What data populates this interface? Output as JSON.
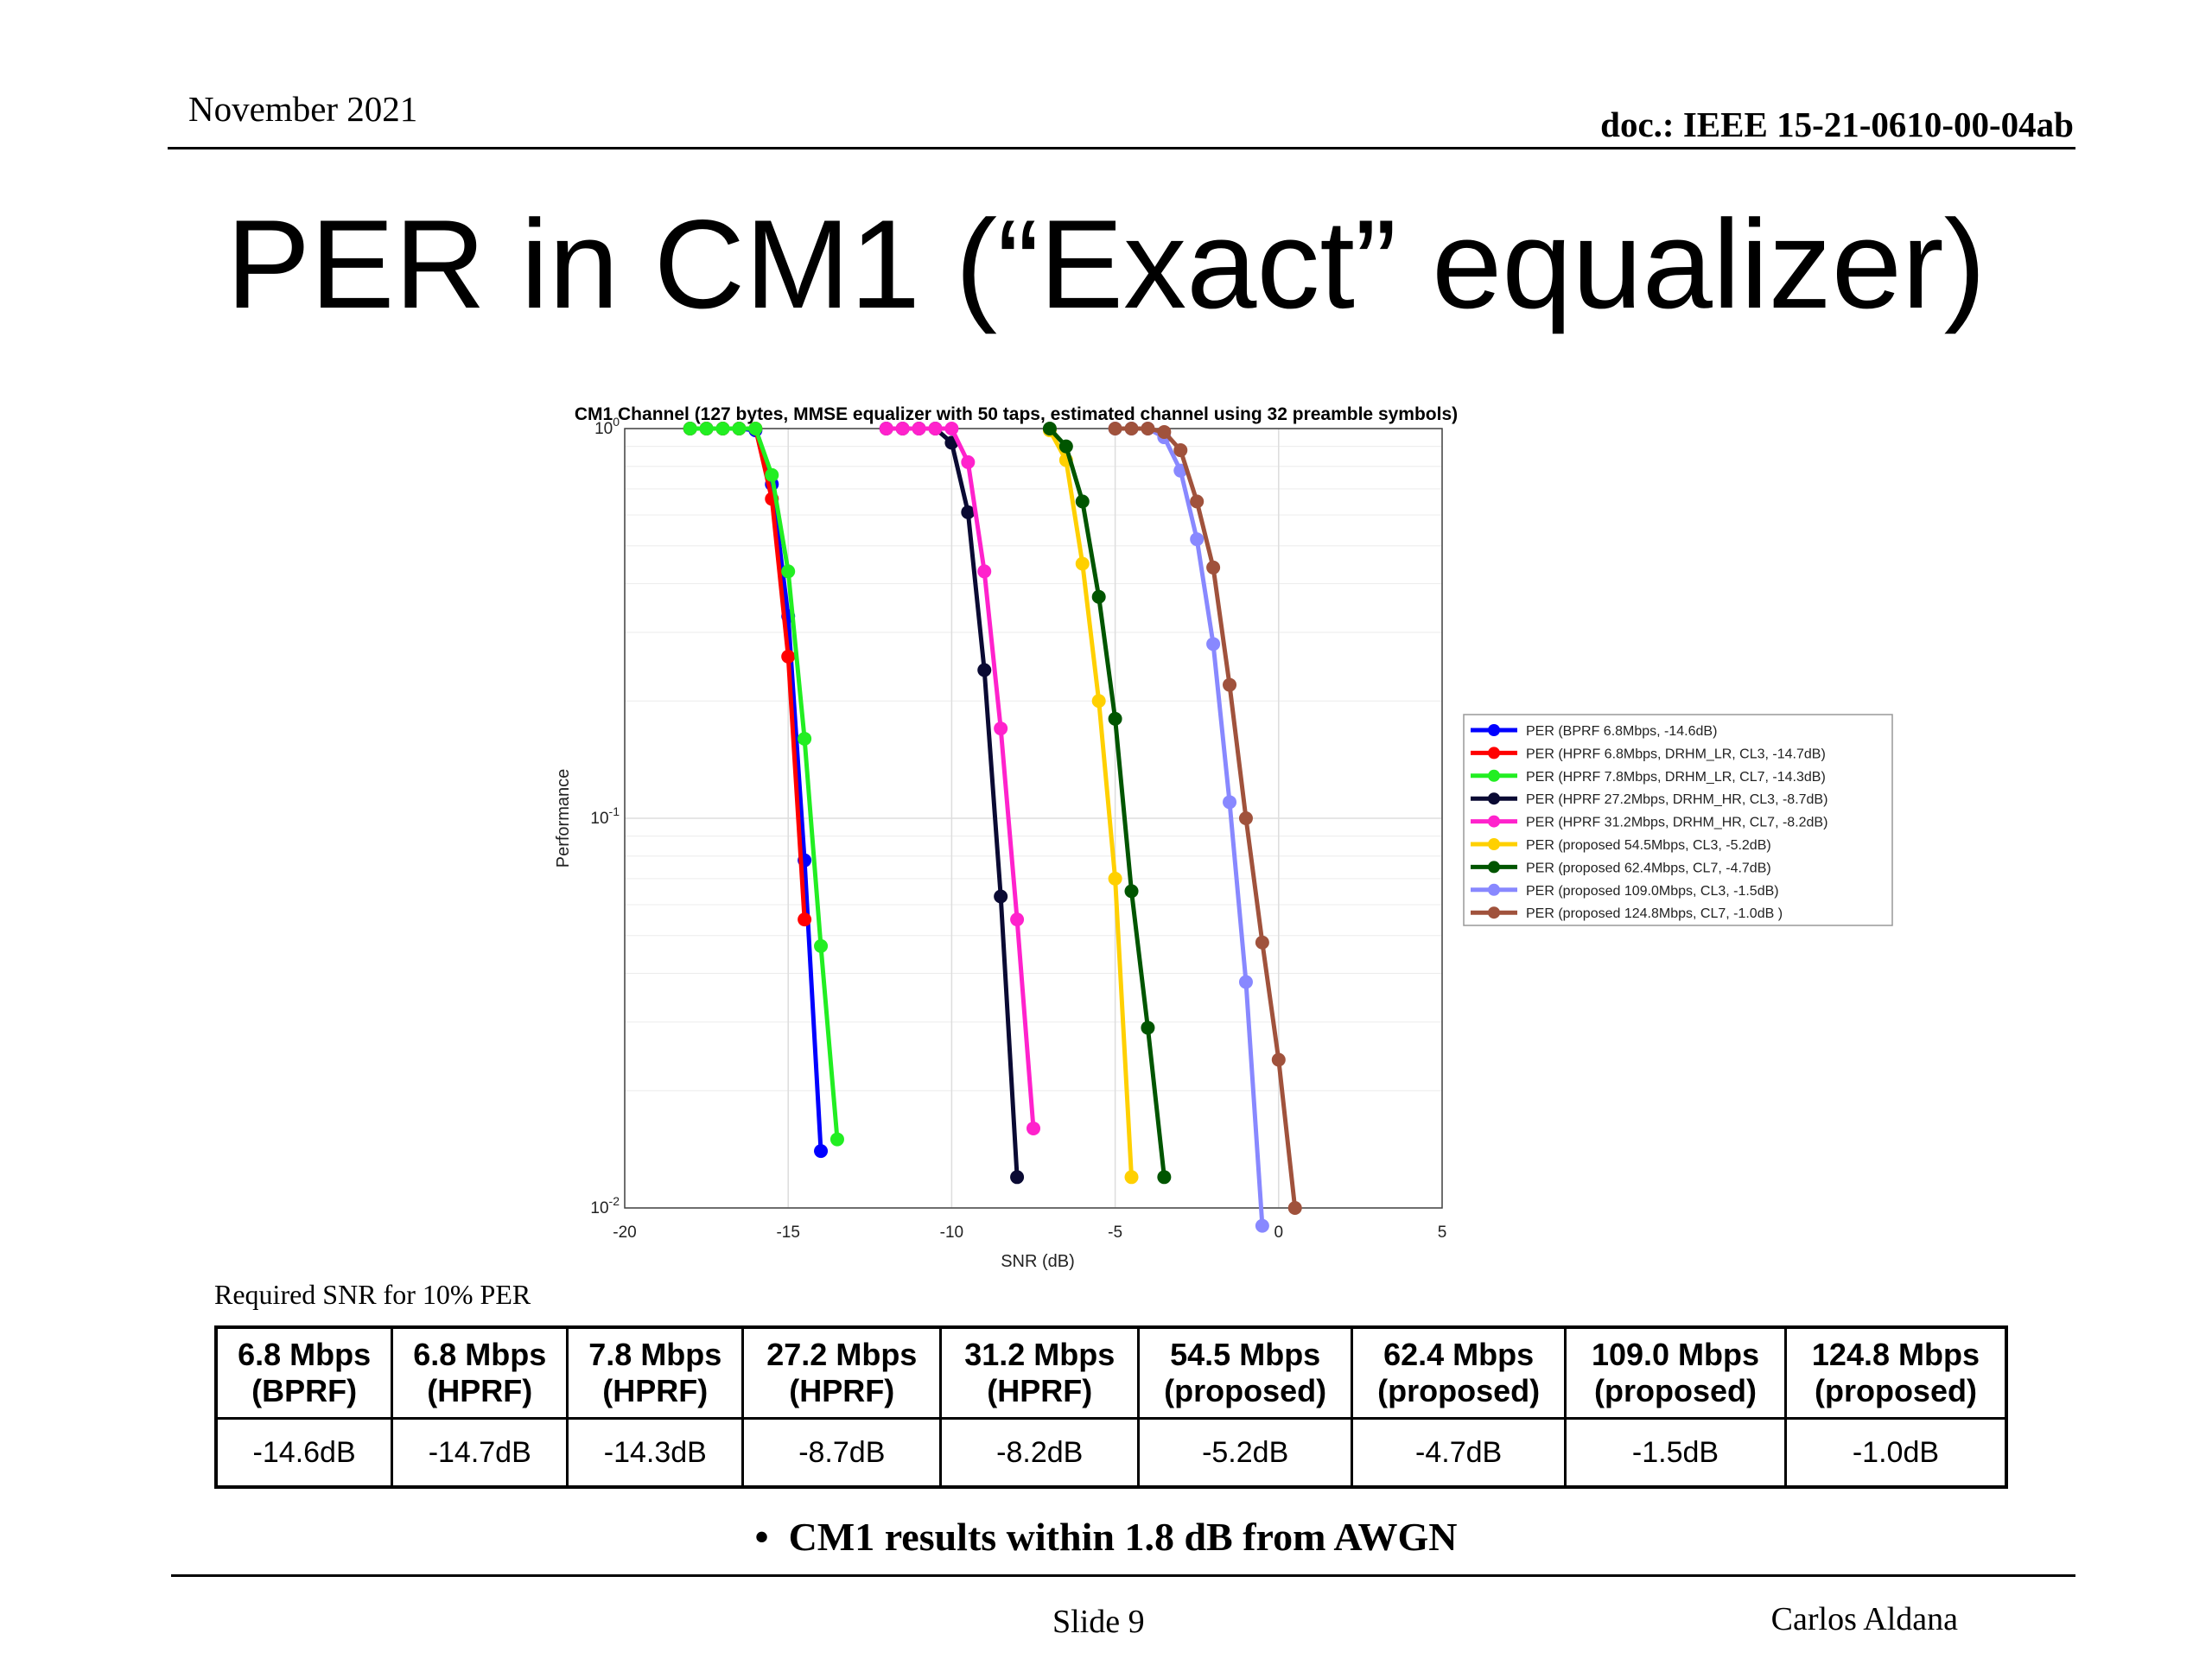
{
  "header": {
    "date": "November 2021",
    "doc": "doc.: IEEE 15-21-0610-00-04ab"
  },
  "slide_title": "PER in CM1 (“Exact” equalizer)",
  "chart_data": {
    "type": "line",
    "title": "CM1 Channel (127 bytes, MMSE equalizer with 50 taps, estimated channel using 32 preamble symbols)",
    "xlabel": "SNR (dB)",
    "ylabel": "Performance",
    "xlim": [
      -20,
      5
    ],
    "ylim": [
      0.01,
      1
    ],
    "yscale": "log",
    "grid": true,
    "legend_position": "right",
    "x_ticks": [
      -20,
      -15,
      -10,
      -5,
      0,
      5
    ],
    "y_ticks": [
      {
        "base": "10",
        "exp": "0",
        "value": 1
      },
      {
        "base": "10",
        "exp": "-1",
        "value": 0.1
      },
      {
        "base": "10",
        "exp": "-2",
        "value": 0.01
      }
    ],
    "series": [
      {
        "name": "PER (BPRF 6.8Mbps, -14.6dB)",
        "color": "#0000ff",
        "x": [
          -18,
          -17.5,
          -17,
          -16.5,
          -16,
          -15.5,
          -15,
          -14.5,
          -14
        ],
        "y": [
          1,
          1,
          1,
          1,
          0.99,
          0.72,
          0.33,
          0.078,
          0.014
        ]
      },
      {
        "name": "PER (HPRF 6.8Mbps, DRHM_LR, CL3, -14.7dB)",
        "color": "#ff0000",
        "x": [
          -18,
          -17.5,
          -17,
          -16.5,
          -16,
          -15.5,
          -15,
          -14.5
        ],
        "y": [
          1,
          1,
          1,
          1,
          1,
          0.66,
          0.26,
          0.055
        ]
      },
      {
        "name": "PER (HPRF 7.8Mbps, DRHM_LR, CL7, -14.3dB)",
        "color": "#22ee22",
        "x": [
          -18,
          -17.5,
          -17,
          -16.5,
          -16,
          -15.5,
          -15,
          -14.5,
          -14,
          -13.5
        ],
        "y": [
          1,
          1,
          1,
          1,
          1,
          0.76,
          0.43,
          0.16,
          0.047,
          0.015
        ]
      },
      {
        "name": "PER (HPRF 27.2Mbps, DRHM_HR, CL3, -8.7dB)",
        "color": "#0a0a33",
        "x": [
          -12,
          -11.5,
          -11,
          -10.5,
          -10,
          -9.5,
          -9,
          -8.5,
          -8
        ],
        "y": [
          1,
          1,
          1,
          1,
          0.92,
          0.61,
          0.24,
          0.063,
          0.012
        ]
      },
      {
        "name": "PER (HPRF 31.2Mbps, DRHM_HR, CL7, -8.2dB)",
        "color": "#ff22cc",
        "x": [
          -12,
          -11.5,
          -11,
          -10.5,
          -10,
          -9.5,
          -9,
          -8.5,
          -8,
          -7.5
        ],
        "y": [
          1,
          1,
          1,
          1,
          1,
          0.82,
          0.43,
          0.17,
          0.055,
          0.016
        ]
      },
      {
        "name": "PER (proposed 54.5Mbps, CL3, -5.2dB)",
        "color": "#ffd000",
        "x": [
          -7,
          -6.5,
          -6,
          -5.5,
          -5,
          -4.5
        ],
        "y": [
          0.99,
          0.83,
          0.45,
          0.2,
          0.07,
          0.012
        ]
      },
      {
        "name": "PER (proposed 62.4Mbps, CL7, -4.7dB)",
        "color": "#005500",
        "x": [
          -7,
          -6.5,
          -6,
          -5.5,
          -5,
          -4.5,
          -4,
          -3.5
        ],
        "y": [
          1,
          0.9,
          0.65,
          0.37,
          0.18,
          0.065,
          0.029,
          0.012
        ]
      },
      {
        "name": "PER (proposed 109.0Mbps, CL3, -1.5dB)",
        "color": "#8888ff",
        "x": [
          -5,
          -4.5,
          -4,
          -3.5,
          -3,
          -2.5,
          -2,
          -1.5,
          -1,
          -0.5
        ],
        "y": [
          1,
          1,
          1,
          0.95,
          0.78,
          0.52,
          0.28,
          0.11,
          0.038,
          0.009
        ]
      },
      {
        "name": "PER (proposed 124.8Mbps, CL7, -1.0dB )",
        "color": "#a0523c",
        "x": [
          -5,
          -4.5,
          -4,
          -3.5,
          -3,
          -2.5,
          -2,
          -1.5,
          -1,
          -0.5,
          0,
          0.5
        ],
        "y": [
          1,
          1,
          1,
          0.98,
          0.88,
          0.65,
          0.44,
          0.22,
          0.1,
          0.048,
          0.024,
          0.01
        ]
      }
    ]
  },
  "table": {
    "caption": "Required SNR for 10% PER",
    "columns": [
      {
        "rate": "6.8 Mbps",
        "mode": "(BPRF)",
        "snr": "-14.6dB"
      },
      {
        "rate": "6.8 Mbps",
        "mode": "(HPRF)",
        "snr": "-14.7dB"
      },
      {
        "rate": "7.8 Mbps",
        "mode": "(HPRF)",
        "snr": "-14.3dB"
      },
      {
        "rate": "27.2 Mbps",
        "mode": "(HPRF)",
        "snr": "-8.7dB"
      },
      {
        "rate": "31.2 Mbps",
        "mode": "(HPRF)",
        "snr": "-8.2dB"
      },
      {
        "rate": "54.5 Mbps",
        "mode": "(proposed)",
        "snr": "-5.2dB"
      },
      {
        "rate": "62.4 Mbps",
        "mode": "(proposed)",
        "snr": "-4.7dB"
      },
      {
        "rate": "109.0 Mbps",
        "mode": "(proposed)",
        "snr": "-1.5dB"
      },
      {
        "rate": "124.8 Mbps",
        "mode": "(proposed)",
        "snr": "-1.0dB"
      }
    ]
  },
  "bullet": "CM1 results within 1.8 dB from AWGN",
  "footer": {
    "slide": "Slide 9",
    "author": "Carlos Aldana"
  }
}
